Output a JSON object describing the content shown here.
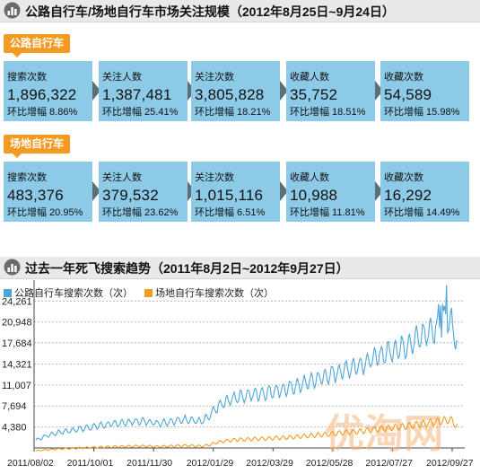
{
  "section1": {
    "title": "公路自行车/场地自行车市场关注规模（2012年8月25日~9月24日）",
    "road": {
      "tag": "公路自行车",
      "cards": [
        {
          "label": "搜索次数",
          "value": "1,896,322",
          "change": "环比增幅 8.86%"
        },
        {
          "label": "关注人数",
          "value": "1,387,481",
          "change": "环比增幅 25.41%"
        },
        {
          "label": "关注次数",
          "value": "3,805,828",
          "change": "环比增幅 18.21%"
        },
        {
          "label": "收藏人数",
          "value": "35,752",
          "change": "环比增幅 18.51%"
        },
        {
          "label": "收藏次数",
          "value": "54,589",
          "change": "环比增幅 15.98%"
        }
      ]
    },
    "track": {
      "tag": "场地自行车",
      "cards": [
        {
          "label": "搜索次数",
          "value": "483,376",
          "change": "环比增幅 20.95%"
        },
        {
          "label": "关注人数",
          "value": "379,532",
          "change": "环比增幅 23.62%"
        },
        {
          "label": "关注次数",
          "value": "1,015,116",
          "change": "环比增幅 6.51%"
        },
        {
          "label": "收藏人数",
          "value": "10,988",
          "change": "环比增幅 11.81%"
        },
        {
          "label": "收藏次数",
          "value": "16,292",
          "change": "环比增幅 14.49%"
        }
      ]
    }
  },
  "section2": {
    "title": "过去一年死飞搜索趋势（2011年8月2日~2012年9月27日）"
  },
  "watermark": "优淘网",
  "colors": {
    "blue": "#4da6d8",
    "orange": "#f39a22",
    "card": "#8ccae8",
    "arrow": "#5b6e7a"
  },
  "chart_data": {
    "type": "line",
    "series": [
      {
        "name": "公路自行车搜索次数（次）",
        "color": "#4da6d8"
      },
      {
        "name": "场地自行车搜索次数（次）",
        "color": "#f39a22"
      }
    ],
    "yticks": [
      "24,261",
      "20,948",
      "17,684",
      "14,321",
      "11,007",
      "7,694",
      "4,380"
    ],
    "ytick_values": [
      24261,
      20948,
      17684,
      14321,
      11007,
      7694,
      4380
    ],
    "xticks": [
      "2011/08/02",
      "2011/10/01",
      "2011/11/30",
      "2012/01/29",
      "2012/03/29",
      "2012/05/28",
      "2012/07/27",
      "2012/09/27"
    ],
    "ylim": [
      1066,
      27574
    ],
    "grid": true,
    "legend": "top-left",
    "road_weekly": [
      2300,
      2800,
      3200,
      3500,
      3700,
      3900,
      4100,
      4300,
      4500,
      4700,
      4800,
      5000,
      5100,
      5200,
      5300,
      5200,
      5000,
      5100,
      5300,
      5400,
      5600,
      5400,
      5200,
      6000,
      7400,
      8200,
      8800,
      9200,
      9300,
      9600,
      9700,
      9900,
      10200,
      10300,
      10600,
      11000,
      11400,
      11800,
      12200,
      12500,
      13000,
      13400,
      13800,
      14200,
      14700,
      15200,
      15800,
      16300,
      16800,
      17200,
      17800,
      18600,
      19200,
      19800,
      20500,
      21500,
      17000
    ]
  }
}
